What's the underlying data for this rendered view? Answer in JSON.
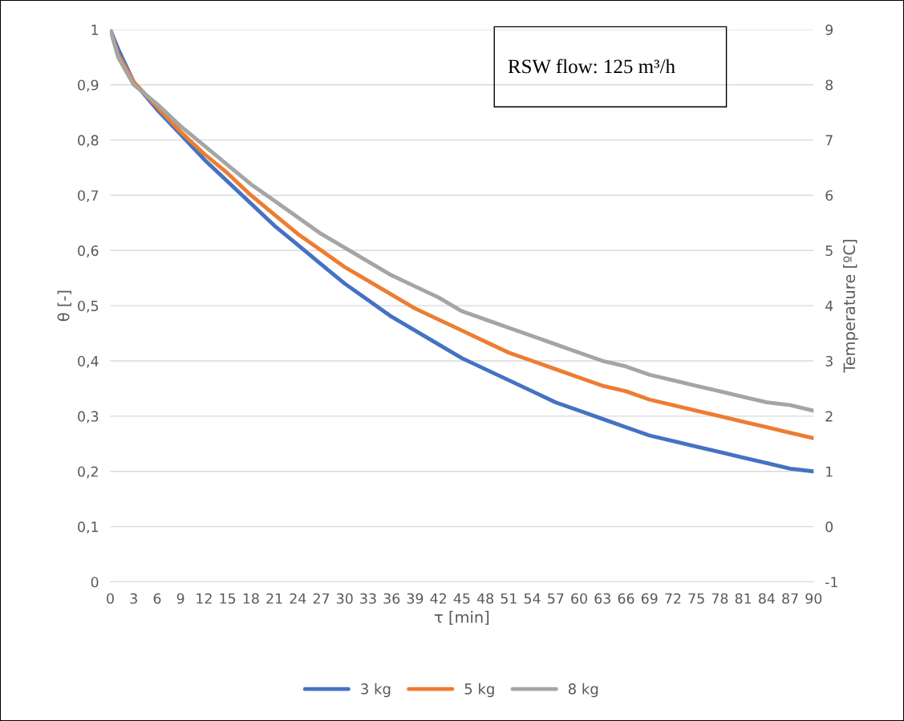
{
  "chart_data": {
    "type": "line",
    "xlabel": "τ [min]",
    "ylabel": "θ [-]",
    "y2label": "Temperature [ºC]",
    "annotations": [
      "RSW flow: 125 m³/h"
    ],
    "x": [
      0,
      1,
      3,
      6,
      9,
      12,
      15,
      18,
      21,
      24,
      27,
      30,
      33,
      36,
      39,
      42,
      45,
      48,
      51,
      54,
      57,
      60,
      63,
      66,
      69,
      72,
      75,
      78,
      81,
      84,
      87,
      90
    ],
    "series": [
      {
        "name": "3 kg",
        "color": "#4472c4",
        "values": [
          1.0,
          0.965,
          0.905,
          0.855,
          0.81,
          0.765,
          0.725,
          0.685,
          0.645,
          0.61,
          0.575,
          0.54,
          0.51,
          0.48,
          0.455,
          0.43,
          0.405,
          0.385,
          0.365,
          0.345,
          0.325,
          0.31,
          0.295,
          0.28,
          0.265,
          0.255,
          0.245,
          0.235,
          0.225,
          0.215,
          0.205,
          0.2
        ]
      },
      {
        "name": "5 kg",
        "color": "#ed7d31",
        "values": [
          1.0,
          0.955,
          0.905,
          0.86,
          0.815,
          0.775,
          0.74,
          0.7,
          0.665,
          0.63,
          0.6,
          0.57,
          0.545,
          0.52,
          0.495,
          0.475,
          0.455,
          0.435,
          0.415,
          0.4,
          0.385,
          0.37,
          0.355,
          0.345,
          0.33,
          0.32,
          0.31,
          0.3,
          0.29,
          0.28,
          0.27,
          0.26
        ]
      },
      {
        "name": "8 kg",
        "color": "#a5a5a5",
        "values": [
          1.0,
          0.95,
          0.9,
          0.865,
          0.825,
          0.79,
          0.755,
          0.72,
          0.69,
          0.66,
          0.63,
          0.605,
          0.58,
          0.555,
          0.535,
          0.515,
          0.49,
          0.475,
          0.46,
          0.445,
          0.43,
          0.415,
          0.4,
          0.39,
          0.375,
          0.365,
          0.355,
          0.345,
          0.335,
          0.325,
          0.32,
          0.31
        ]
      }
    ],
    "xlim": [
      0,
      90
    ],
    "xticks": [
      0,
      3,
      6,
      9,
      12,
      15,
      18,
      21,
      24,
      27,
      30,
      33,
      36,
      39,
      42,
      45,
      48,
      51,
      54,
      57,
      60,
      63,
      66,
      69,
      72,
      75,
      78,
      81,
      84,
      87,
      90
    ],
    "ylim": [
      0,
      1
    ],
    "yticks": [
      0,
      {
        "value": 0.1,
        "label": "0,1"
      },
      {
        "value": 0.2,
        "label": "0,2"
      },
      {
        "value": 0.3,
        "label": "0,3"
      },
      {
        "value": 0.4,
        "label": "0,4"
      },
      {
        "value": 0.5,
        "label": "0,5"
      },
      {
        "value": 0.6,
        "label": "0,6"
      },
      {
        "value": 0.7,
        "label": "0,7"
      },
      {
        "value": 0.8,
        "label": "0,8"
      },
      {
        "value": 0.9,
        "label": "0,9"
      },
      1
    ],
    "y2lim": [
      -1,
      9
    ],
    "y2ticks": [
      -1,
      0,
      1,
      2,
      3,
      4,
      5,
      6,
      7,
      8,
      9
    ],
    "grid": "y",
    "legend": "bottom",
    "marker": "none",
    "line_style": "solid"
  }
}
